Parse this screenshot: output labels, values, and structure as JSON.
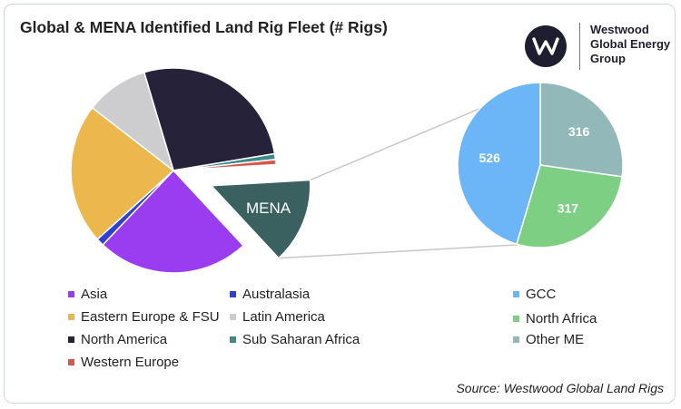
{
  "title": "Global & MENA Identified Land Rig Fleet (# Rigs)",
  "logo": {
    "letter": "w",
    "lines": [
      "Westwood",
      "Global Energy",
      "Group"
    ],
    "colors": {
      "circle": "#1e1e30",
      "letter": "#ffffff"
    }
  },
  "source": "Source: Westwood Global Land Rigs",
  "chart_data": [
    {
      "type": "pie",
      "title": "",
      "exploded": "MENA",
      "slices": [
        {
          "name": "North America",
          "share": 0.27,
          "color": "#26223a",
          "label": ""
        },
        {
          "name": "Sub Saharan Africa",
          "share": 0.009,
          "color": "#3d8a8a",
          "label": ""
        },
        {
          "name": "Western Europe",
          "share": 0.008,
          "color": "#d7584a",
          "label": ""
        },
        {
          "name": "MENA",
          "share": 0.14,
          "color": "#3a6060",
          "label": "MENA"
        },
        {
          "name": "Asia",
          "share": 0.24,
          "color": "#9a3cf0",
          "label": ""
        },
        {
          "name": "Australasia",
          "share": 0.012,
          "color": "#2f3fd6",
          "label": ""
        },
        {
          "name": "Eastern Europe & FSU",
          "share": 0.222,
          "color": "#ecb84e",
          "label": ""
        },
        {
          "name": "Latin America",
          "share": 0.099,
          "color": "#cdcdcf",
          "label": ""
        }
      ]
    },
    {
      "type": "pie",
      "title": "",
      "slices": [
        {
          "name": "Other ME",
          "value": 316,
          "color": "#93b8ba",
          "label": "316"
        },
        {
          "name": "North Africa",
          "value": 317,
          "color": "#7dcf84",
          "label": "317"
        },
        {
          "name": "GCC",
          "value": 526,
          "color": "#6cb6f7",
          "label": "526"
        }
      ]
    }
  ],
  "legend_main": [
    {
      "label": "Asia",
      "color": "#9a3cf0"
    },
    {
      "label": "Australasia",
      "color": "#2f3fd6"
    },
    {
      "label": "Eastern Europe & FSU",
      "color": "#ecb84e"
    },
    {
      "label": "Latin America",
      "color": "#cdcdcf"
    },
    {
      "label": "North America",
      "color": "#26223a"
    },
    {
      "label": "Sub Saharan Africa",
      "color": "#3d8a8a"
    },
    {
      "label": "Western Europe",
      "color": "#d7584a"
    }
  ],
  "legend_sub": [
    {
      "label": "GCC",
      "color": "#6cb6f7"
    },
    {
      "label": "North Africa",
      "color": "#7dcf84"
    },
    {
      "label": "Other ME",
      "color": "#93b8ba"
    }
  ]
}
